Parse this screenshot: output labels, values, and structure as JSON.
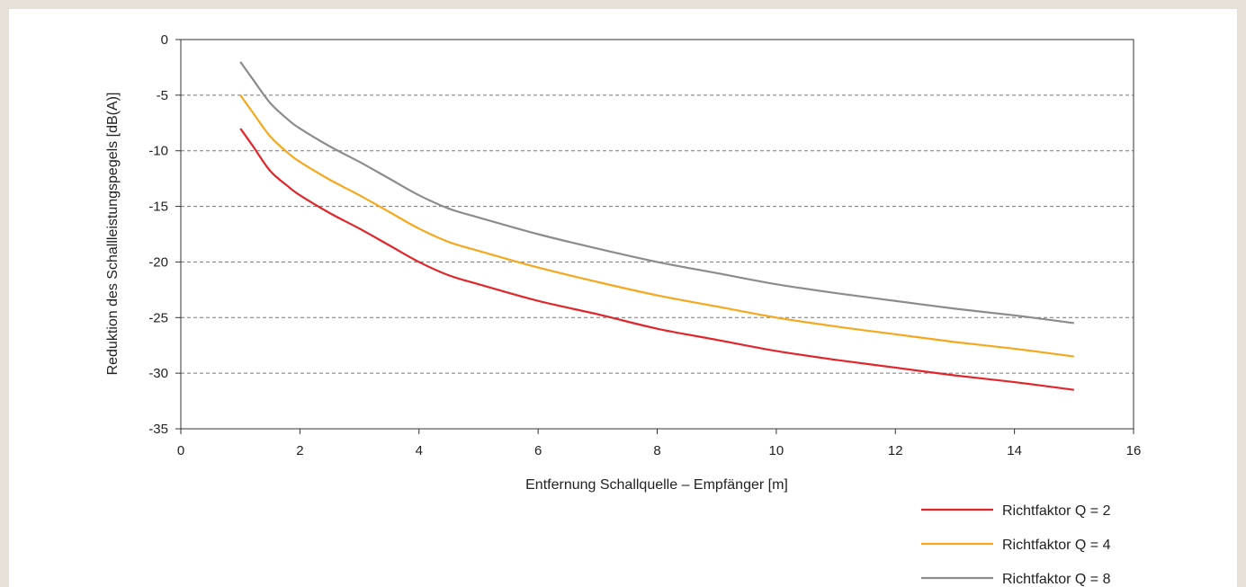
{
  "chart_data": {
    "type": "line",
    "xlabel": "Entfernung Schallquelle – Empfänger [m]",
    "ylabel": "Reduktion des Schallleistungspegels [dB(A)]",
    "xlim": [
      0,
      16
    ],
    "ylim": [
      -35,
      0
    ],
    "xticks": [
      0,
      2,
      4,
      6,
      8,
      10,
      12,
      14,
      16
    ],
    "yticks": [
      0,
      -5,
      -10,
      -15,
      -20,
      -25,
      -30,
      -35
    ],
    "grid": "horizontal dashed",
    "legend_position": "bottom-right",
    "series": [
      {
        "name": "Richtfaktor Q = 2",
        "color": "#e0262b",
        "points": [
          [
            1,
            -8
          ],
          [
            1.2,
            -9.5
          ],
          [
            1.5,
            -11.8
          ],
          [
            1.8,
            -13.2
          ],
          [
            2,
            -14
          ],
          [
            2.5,
            -15.6
          ],
          [
            3,
            -17
          ],
          [
            3.5,
            -18.5
          ],
          [
            4,
            -20
          ],
          [
            4.5,
            -21.2
          ],
          [
            5,
            -22
          ],
          [
            6,
            -23.5
          ],
          [
            7,
            -24.7
          ],
          [
            8,
            -26
          ],
          [
            9,
            -27
          ],
          [
            10,
            -28
          ],
          [
            11,
            -28.8
          ],
          [
            12,
            -29.5
          ],
          [
            13,
            -30.2
          ],
          [
            14,
            -30.8
          ],
          [
            15,
            -31.5
          ]
        ]
      },
      {
        "name": "Richtfaktor Q = 4",
        "color": "#f5a81d",
        "points": [
          [
            1,
            -5
          ],
          [
            1.2,
            -6.5
          ],
          [
            1.5,
            -8.7
          ],
          [
            1.8,
            -10.2
          ],
          [
            2,
            -11
          ],
          [
            2.5,
            -12.6
          ],
          [
            3,
            -14
          ],
          [
            3.5,
            -15.5
          ],
          [
            4,
            -17
          ],
          [
            4.5,
            -18.2
          ],
          [
            5,
            -19
          ],
          [
            6,
            -20.5
          ],
          [
            7,
            -21.8
          ],
          [
            8,
            -23
          ],
          [
            9,
            -24
          ],
          [
            10,
            -25
          ],
          [
            11,
            -25.8
          ],
          [
            12,
            -26.5
          ],
          [
            13,
            -27.2
          ],
          [
            14,
            -27.8
          ],
          [
            15,
            -28.5
          ]
        ]
      },
      {
        "name": "Richtfaktor Q = 8",
        "color": "#8c8c8c",
        "points": [
          [
            1,
            -2
          ],
          [
            1.2,
            -3.5
          ],
          [
            1.5,
            -5.7
          ],
          [
            1.8,
            -7.2
          ],
          [
            2,
            -8
          ],
          [
            2.5,
            -9.6
          ],
          [
            3,
            -11
          ],
          [
            3.5,
            -12.5
          ],
          [
            4,
            -14
          ],
          [
            4.5,
            -15.2
          ],
          [
            5,
            -16
          ],
          [
            6,
            -17.5
          ],
          [
            7,
            -18.8
          ],
          [
            8,
            -20
          ],
          [
            9,
            -21
          ],
          [
            10,
            -22
          ],
          [
            11,
            -22.8
          ],
          [
            12,
            -23.5
          ],
          [
            13,
            -24.2
          ],
          [
            14,
            -24.8
          ],
          [
            15,
            -25.5
          ]
        ]
      }
    ]
  }
}
